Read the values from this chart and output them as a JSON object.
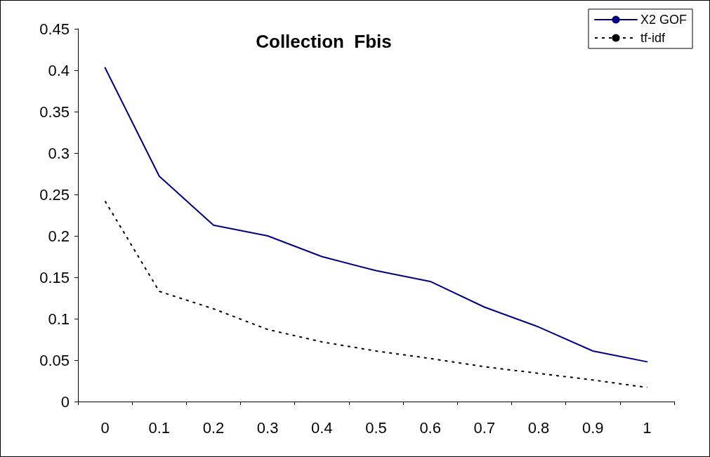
{
  "chart_data": {
    "type": "line",
    "title": "Collection  Fbis",
    "categories": [
      "0",
      "0.1",
      "0.2",
      "0.3",
      "0.4",
      "0.5",
      "0.6",
      "0.7",
      "0.8",
      "0.9",
      "1"
    ],
    "series": [
      {
        "name": "X2 GOF",
        "color": "#000080",
        "line_style": "solid",
        "values": [
          0.403,
          0.272,
          0.213,
          0.2,
          0.175,
          0.158,
          0.145,
          0.114,
          0.09,
          0.061,
          0.048
        ]
      },
      {
        "name": "tf-idf",
        "color": "#000000",
        "line_style": "dotted",
        "values": [
          0.242,
          0.133,
          0.112,
          0.087,
          0.072,
          0.061,
          0.052,
          0.042,
          0.034,
          0.026,
          0.017
        ]
      }
    ],
    "ylim": [
      0,
      0.45
    ],
    "yticks": [
      0,
      0.05,
      0.1,
      0.15,
      0.2,
      0.25,
      0.3,
      0.35,
      0.4,
      0.45
    ],
    "grid": false,
    "legend": "top right",
    "marker": "none"
  }
}
